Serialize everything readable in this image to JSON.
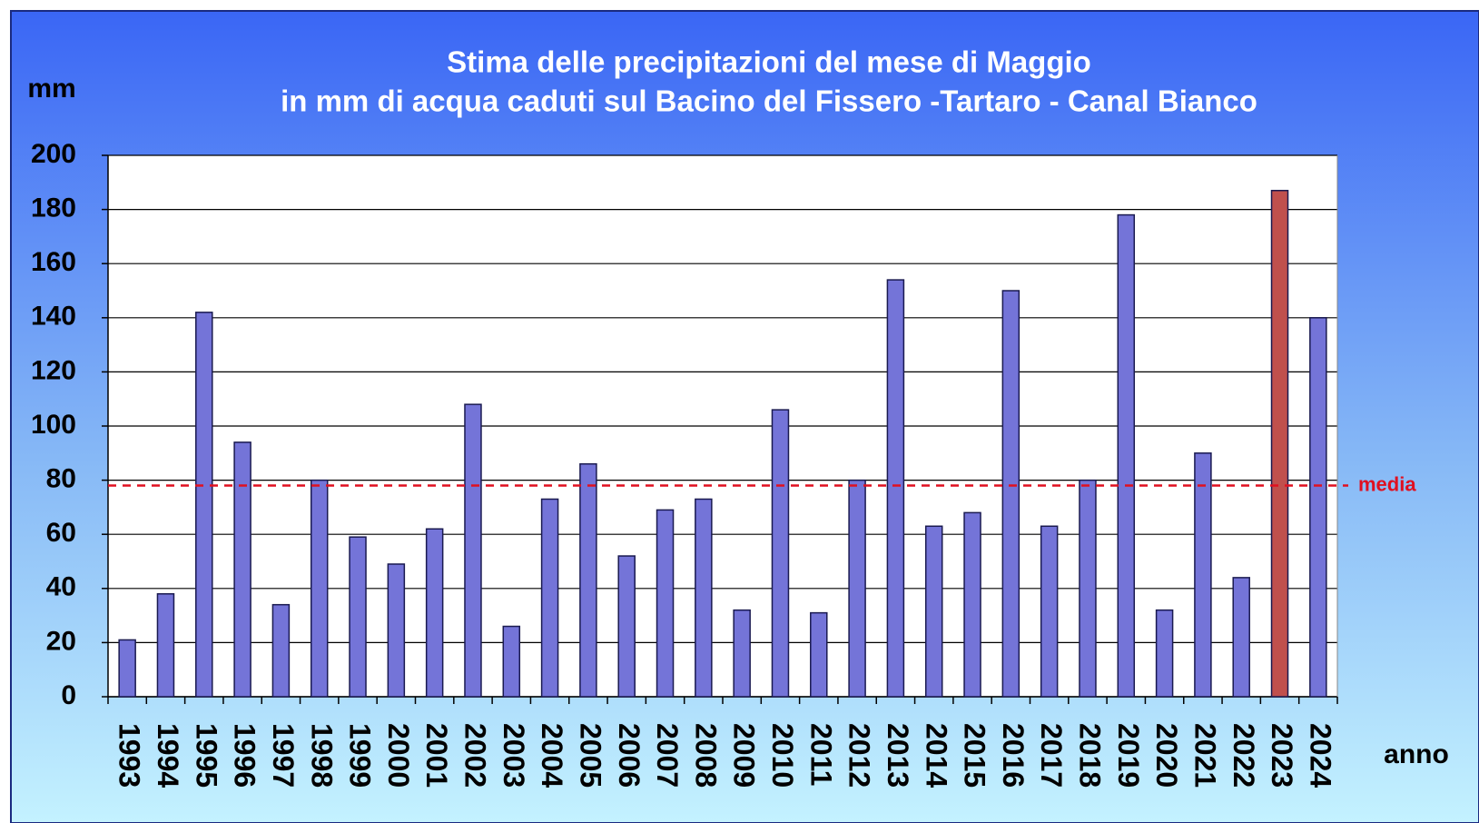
{
  "chart_data": {
    "type": "bar",
    "title": "Stima delle precipitazioni del mese di Maggio",
    "subtitle": "in mm di acqua caduti sul Bacino del Fissero -Tartaro  - Canal Bianco",
    "y_label": "mm",
    "x_label": "anno",
    "categories": [
      "1993",
      "1994",
      "1995",
      "1996",
      "1997",
      "1998",
      "1999",
      "2000",
      "2001",
      "2002",
      "2003",
      "2004",
      "2005",
      "2006",
      "2007",
      "2008",
      "2009",
      "2010",
      "2011",
      "2012",
      "2013",
      "2014",
      "2015",
      "2016",
      "2017",
      "2018",
      "2019",
      "2020",
      "2021",
      "2022",
      "2023",
      "2024"
    ],
    "values": [
      21,
      38,
      142,
      94,
      34,
      80,
      59,
      49,
      62,
      108,
      26,
      73,
      86,
      52,
      69,
      73,
      32,
      106,
      31,
      80,
      154,
      63,
      68,
      150,
      63,
      80,
      178,
      32,
      90,
      44,
      187,
      140
    ],
    "colors": [
      "#7474d8",
      "#7474d8",
      "#7474d8",
      "#7474d8",
      "#7474d8",
      "#7474d8",
      "#7474d8",
      "#7474d8",
      "#7474d8",
      "#7474d8",
      "#7474d8",
      "#7474d8",
      "#7474d8",
      "#7474d8",
      "#7474d8",
      "#7474d8",
      "#7474d8",
      "#7474d8",
      "#7474d8",
      "#7474d8",
      "#7474d8",
      "#7474d8",
      "#7474d8",
      "#7474d8",
      "#7474d8",
      "#7474d8",
      "#7474d8",
      "#7474d8",
      "#7474d8",
      "#7474d8",
      "#c0504d",
      "#7474d8"
    ],
    "reference_line": {
      "label": "media",
      "value": 78,
      "color": "#e01020"
    },
    "ylim": [
      0,
      200
    ],
    "yticks": [
      0,
      20,
      40,
      60,
      80,
      100,
      120,
      140,
      160,
      180,
      200
    ],
    "grid": true
  }
}
